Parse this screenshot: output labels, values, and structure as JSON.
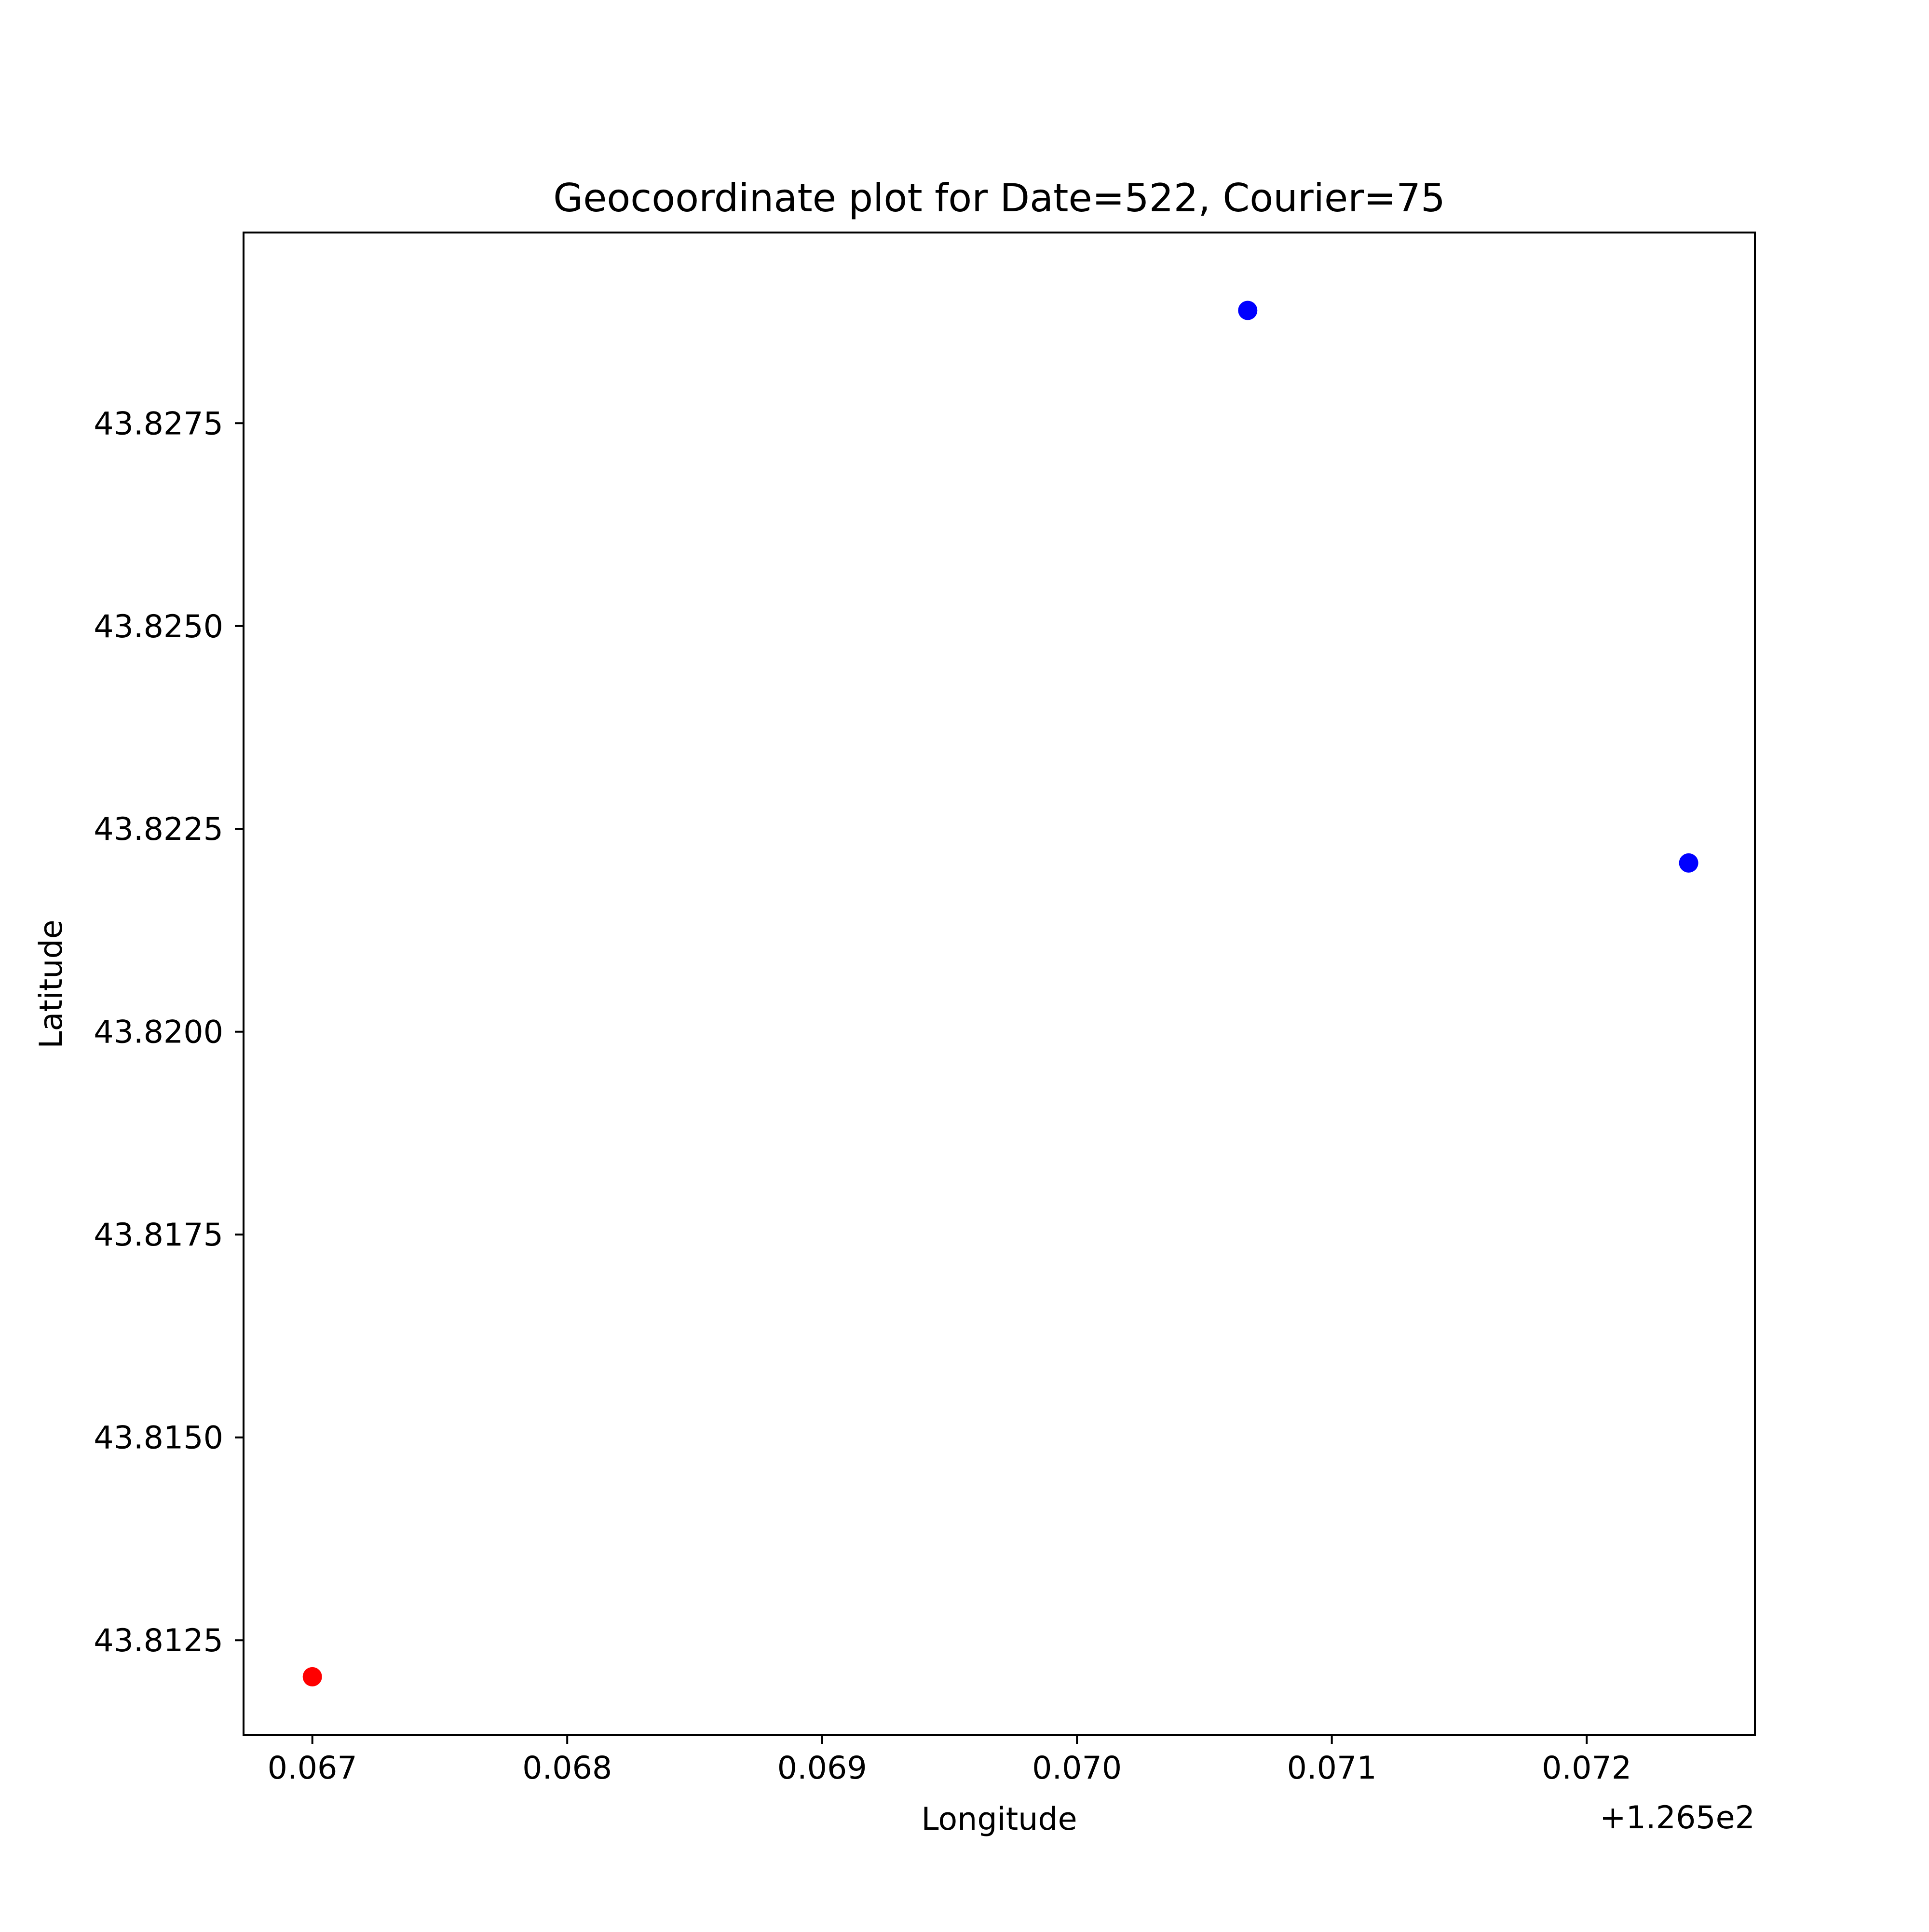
{
  "chart_data": {
    "type": "scatter",
    "title": "Geocoordinate plot for Date=522, Courier=75",
    "xlabel": "Longitude",
    "ylabel": "Latitude",
    "x_offset_label": "+1.265e2",
    "x_offset": 126.5,
    "xlim": [
      126.56673,
      126.57266
    ],
    "ylim": [
      43.81133,
      43.82985
    ],
    "x_ticks": [
      {
        "value": 126.567,
        "label": "0.067"
      },
      {
        "value": 126.568,
        "label": "0.068"
      },
      {
        "value": 126.569,
        "label": "0.069"
      },
      {
        "value": 126.57,
        "label": "0.070"
      },
      {
        "value": 126.571,
        "label": "0.071"
      },
      {
        "value": 126.572,
        "label": "0.072"
      }
    ],
    "y_ticks": [
      {
        "value": 43.8125,
        "label": "43.8125"
      },
      {
        "value": 43.815,
        "label": "43.8150"
      },
      {
        "value": 43.8175,
        "label": "43.8175"
      },
      {
        "value": 43.82,
        "label": "43.8200"
      },
      {
        "value": 43.8225,
        "label": "43.8225"
      },
      {
        "value": 43.825,
        "label": "43.8250"
      },
      {
        "value": 43.8275,
        "label": "43.8275"
      }
    ],
    "points": [
      {
        "x": 126.567,
        "y": 43.81205,
        "color": "#ff0000"
      },
      {
        "x": 126.57067,
        "y": 43.82889,
        "color": "#0000ff"
      },
      {
        "x": 126.5724,
        "y": 43.82208,
        "color": "#0000ff"
      }
    ],
    "grid": false,
    "legend": "none"
  }
}
